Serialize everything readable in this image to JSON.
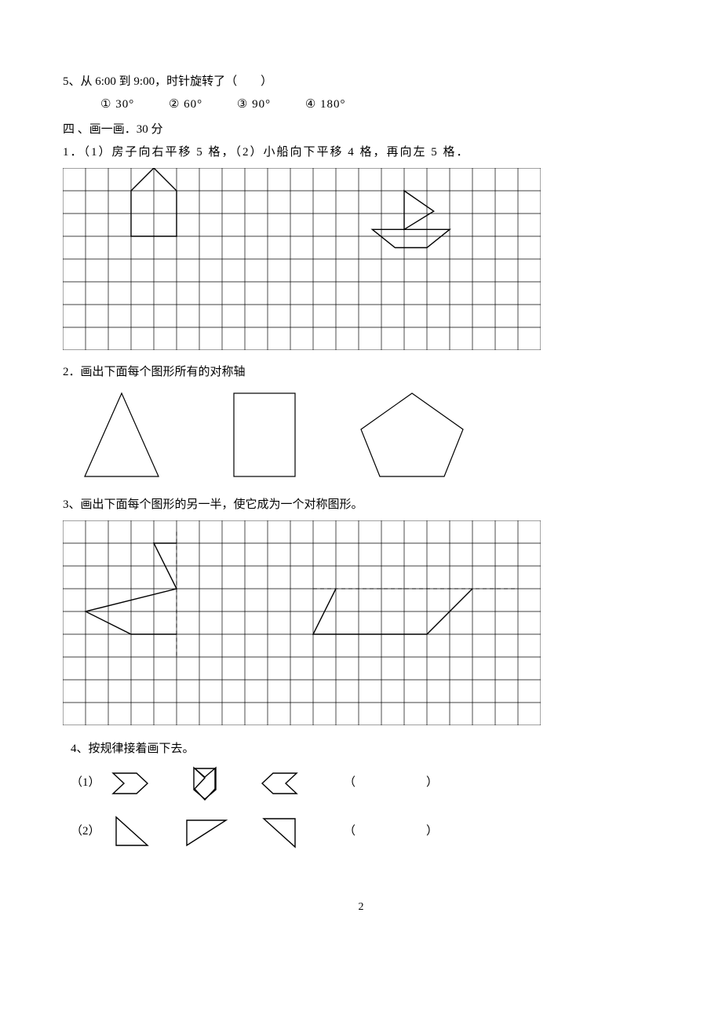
{
  "q5": {
    "text": "5、从 6:00 到 9:00，时针旋转了（　　）",
    "options": [
      "① 30°",
      "② 60°",
      "③ 90°",
      "④ 180°"
    ]
  },
  "sec4_header": "四 、画一画．30 分",
  "sec4_q1": "1．（1）房子向右平移 5 格，（2）小船向下平移 4 格，再向左 5 格．",
  "sec4_q2": "2．画出下面每个图形所有的对称轴",
  "sec4_q3": "3、画出下面每个图形的另一半，使它成为一个对称图形。",
  "sec4_q4": "4、按规律接着画下去。",
  "row1_label": "（1）",
  "row2_label": "（2）",
  "blank_paren_l": "（",
  "blank_paren_r": "）",
  "pagenum": "2",
  "grid": {
    "cell": 29,
    "cols1": 21,
    "rows1": 8,
    "cols2": 21,
    "rows2": 9,
    "stroke": "#000000",
    "stroke_w": 0.7,
    "shape_w": 1.4
  },
  "shapes_q2": {
    "triangle_fontsize": 15
  }
}
